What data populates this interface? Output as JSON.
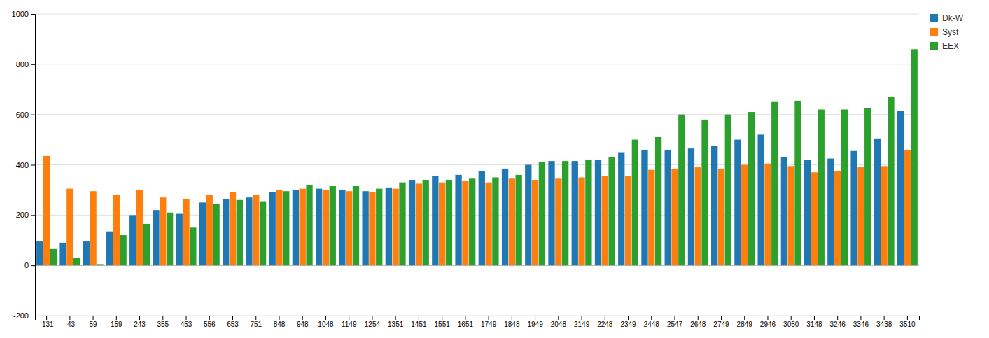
{
  "chart_data": {
    "type": "bar",
    "categories": [
      "-131",
      "-43",
      "59",
      "159",
      "243",
      "355",
      "453",
      "556",
      "653",
      "751",
      "848",
      "948",
      "1048",
      "1149",
      "1254",
      "1351",
      "1451",
      "1551",
      "1651",
      "1749",
      "1848",
      "1949",
      "2048",
      "2149",
      "2248",
      "2349",
      "2448",
      "2547",
      "2648",
      "2749",
      "2849",
      "2946",
      "3050",
      "3148",
      "3246",
      "3346",
      "3438",
      "3510"
    ],
    "series": [
      {
        "name": "Dk-W",
        "values": [
          95,
          90,
          95,
          135,
          200,
          220,
          205,
          250,
          265,
          270,
          290,
          300,
          305,
          300,
          295,
          310,
          340,
          355,
          360,
          375,
          385,
          400,
          415,
          415,
          420,
          450,
          460,
          460,
          465,
          475,
          500,
          520,
          430,
          420,
          425,
          455,
          505,
          615
        ]
      },
      {
        "name": "Syst",
        "values": [
          435,
          305,
          295,
          280,
          300,
          270,
          265,
          280,
          290,
          280,
          300,
          305,
          300,
          295,
          290,
          305,
          325,
          330,
          335,
          330,
          345,
          340,
          345,
          350,
          355,
          355,
          380,
          385,
          390,
          385,
          400,
          405,
          395,
          370,
          375,
          390,
          395,
          460
        ]
      },
      {
        "name": "EEX",
        "values": [
          65,
          30,
          5,
          120,
          165,
          210,
          150,
          245,
          260,
          255,
          295,
          320,
          315,
          315,
          305,
          330,
          340,
          340,
          345,
          350,
          360,
          410,
          415,
          420,
          430,
          500,
          510,
          600,
          580,
          600,
          610,
          650,
          655,
          620,
          620,
          625,
          670,
          860
        ]
      }
    ],
    "ylim": [
      -200,
      1000
    ],
    "yticks": [
      -200,
      0,
      200,
      400,
      600,
      800,
      1000
    ],
    "grid": true,
    "legend": "upper right"
  }
}
